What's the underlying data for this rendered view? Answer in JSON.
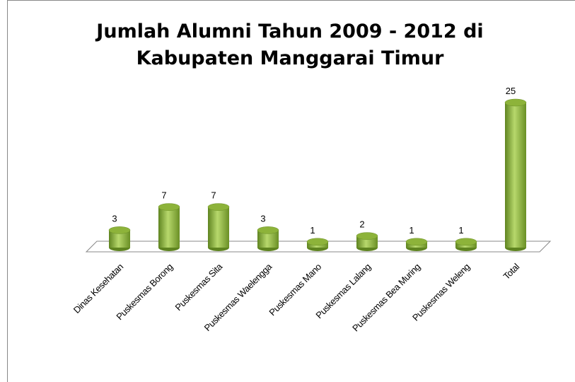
{
  "chart_data": {
    "type": "bar3d",
    "title": "Jumlah Alumni Tahun 2009 - 2012 di Kabupaten Manggarai Timur",
    "categories": [
      "Dinas Kesehatan",
      "Puskesmas Borong",
      "Puskesmas Sita",
      "Puskesmas Waelengga",
      "Puskesmas Mano",
      "Puskesmas Lalang",
      "Puskesmas Bea Muring",
      "Puskesmas Weleng",
      "Total"
    ],
    "values": [
      3,
      7,
      7,
      3,
      1,
      2,
      1,
      1,
      25
    ],
    "color": "#8db33a"
  }
}
